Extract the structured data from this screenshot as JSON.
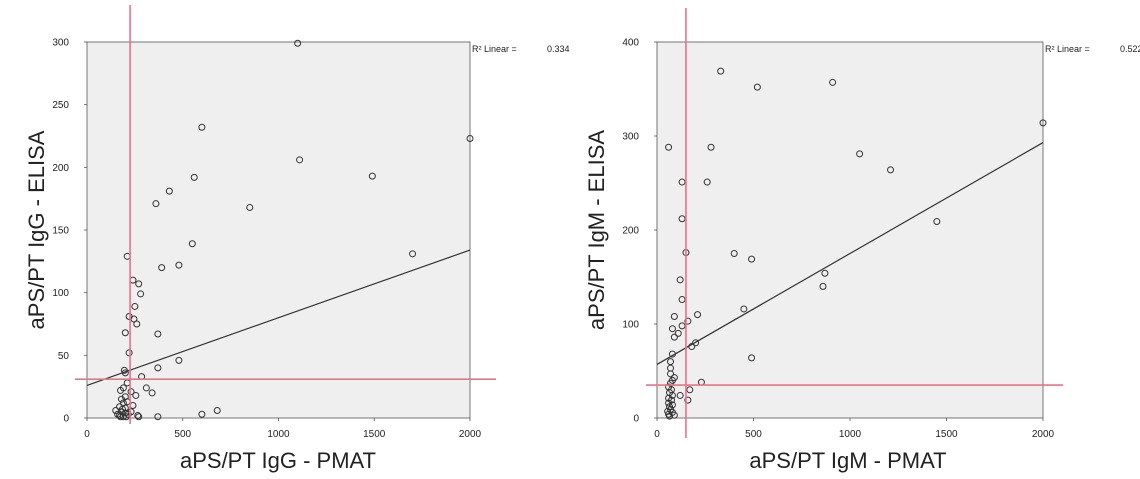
{
  "colors": {
    "plot_bg": "#efefef",
    "frame": "#555555",
    "point": "#333333",
    "fit_line": "#333333",
    "threshold": "#f06e8a"
  },
  "chart_data": [
    {
      "type": "scatter",
      "xlabel": "aPS/PT IgG - PMAT",
      "ylabel": "aPS/PT IgG - ELISA",
      "xlim": [
        0,
        2000
      ],
      "ylim": [
        0,
        300
      ],
      "xticks": [
        0,
        500,
        1000,
        1500,
        2000
      ],
      "yticks": [
        0,
        50,
        100,
        150,
        200,
        250,
        300
      ],
      "grid": false,
      "r2_label": "R² Linear =",
      "r2_value": "0.334",
      "fit_line": [
        [
          0,
          26
        ],
        [
          2000,
          134
        ]
      ],
      "threshold_x": 225,
      "threshold_y": 31,
      "points": [
        [
          1100,
          299
        ],
        [
          600,
          232
        ],
        [
          560,
          192
        ],
        [
          430,
          181
        ],
        [
          360,
          171
        ],
        [
          850,
          168
        ],
        [
          1110,
          206
        ],
        [
          1490,
          193
        ],
        [
          2000,
          223
        ],
        [
          1700,
          131
        ],
        [
          210,
          129
        ],
        [
          550,
          139
        ],
        [
          480,
          122
        ],
        [
          390,
          120
        ],
        [
          240,
          110
        ],
        [
          270,
          107
        ],
        [
          280,
          99
        ],
        [
          250,
          89
        ],
        [
          220,
          81
        ],
        [
          245,
          79
        ],
        [
          260,
          75
        ],
        [
          200,
          68
        ],
        [
          370,
          67
        ],
        [
          220,
          52
        ],
        [
          480,
          46
        ],
        [
          370,
          40
        ],
        [
          195,
          38
        ],
        [
          200,
          36
        ],
        [
          285,
          33
        ],
        [
          310,
          24
        ],
        [
          340,
          20
        ],
        [
          210,
          28
        ],
        [
          190,
          24
        ],
        [
          175,
          22
        ],
        [
          230,
          21
        ],
        [
          255,
          18
        ],
        [
          200,
          17
        ],
        [
          180,
          15
        ],
        [
          210,
          13
        ],
        [
          190,
          12
        ],
        [
          240,
          10
        ],
        [
          170,
          9
        ],
        [
          200,
          8
        ],
        [
          185,
          7
        ],
        [
          150,
          6
        ],
        [
          180,
          5
        ],
        [
          200,
          4
        ],
        [
          215,
          3
        ],
        [
          265,
          2
        ],
        [
          170,
          2
        ],
        [
          190,
          1
        ],
        [
          370,
          1
        ],
        [
          600,
          3
        ],
        [
          680,
          6
        ],
        [
          160,
          3
        ],
        [
          175,
          1
        ],
        [
          205,
          1
        ],
        [
          230,
          5
        ],
        [
          270,
          1
        ]
      ]
    },
    {
      "type": "scatter",
      "xlabel": "aPS/PT IgM - PMAT",
      "ylabel": "aPS/PT IgM - ELISA",
      "xlim": [
        0,
        2000
      ],
      "ylim": [
        0,
        400
      ],
      "xticks": [
        0,
        500,
        1000,
        1500,
        2000
      ],
      "yticks": [
        0,
        100,
        200,
        300,
        400
      ],
      "grid": false,
      "r2_label": "R² Linear =",
      "r2_value": "0.522",
      "fit_line": [
        [
          0,
          57
        ],
        [
          2000,
          293
        ]
      ],
      "threshold_x": 150,
      "threshold_y": 35,
      "points": [
        [
          330,
          369
        ],
        [
          910,
          357
        ],
        [
          520,
          352
        ],
        [
          2000,
          314
        ],
        [
          60,
          288
        ],
        [
          280,
          288
        ],
        [
          1050,
          281
        ],
        [
          1210,
          264
        ],
        [
          130,
          251
        ],
        [
          260,
          251
        ],
        [
          130,
          212
        ],
        [
          1450,
          209
        ],
        [
          150,
          176
        ],
        [
          400,
          175
        ],
        [
          490,
          169
        ],
        [
          870,
          154
        ],
        [
          860,
          140
        ],
        [
          120,
          147
        ],
        [
          130,
          126
        ],
        [
          450,
          116
        ],
        [
          90,
          108
        ],
        [
          210,
          110
        ],
        [
          160,
          103
        ],
        [
          80,
          95
        ],
        [
          130,
          98
        ],
        [
          110,
          90
        ],
        [
          90,
          86
        ],
        [
          200,
          80
        ],
        [
          180,
          76
        ],
        [
          490,
          64
        ],
        [
          70,
          60
        ],
        [
          80,
          68
        ],
        [
          70,
          53
        ],
        [
          70,
          47
        ],
        [
          90,
          43
        ],
        [
          80,
          40
        ],
        [
          70,
          37
        ],
        [
          230,
          38
        ],
        [
          170,
          30
        ],
        [
          60,
          33
        ],
        [
          75,
          30
        ],
        [
          65,
          27
        ],
        [
          80,
          24
        ],
        [
          120,
          24
        ],
        [
          60,
          21
        ],
        [
          75,
          19
        ],
        [
          160,
          19
        ],
        [
          60,
          16
        ],
        [
          80,
          14
        ],
        [
          65,
          12
        ],
        [
          70,
          9
        ],
        [
          55,
          7
        ],
        [
          80,
          6
        ],
        [
          60,
          4
        ],
        [
          90,
          3
        ],
        [
          65,
          2
        ]
      ]
    }
  ]
}
